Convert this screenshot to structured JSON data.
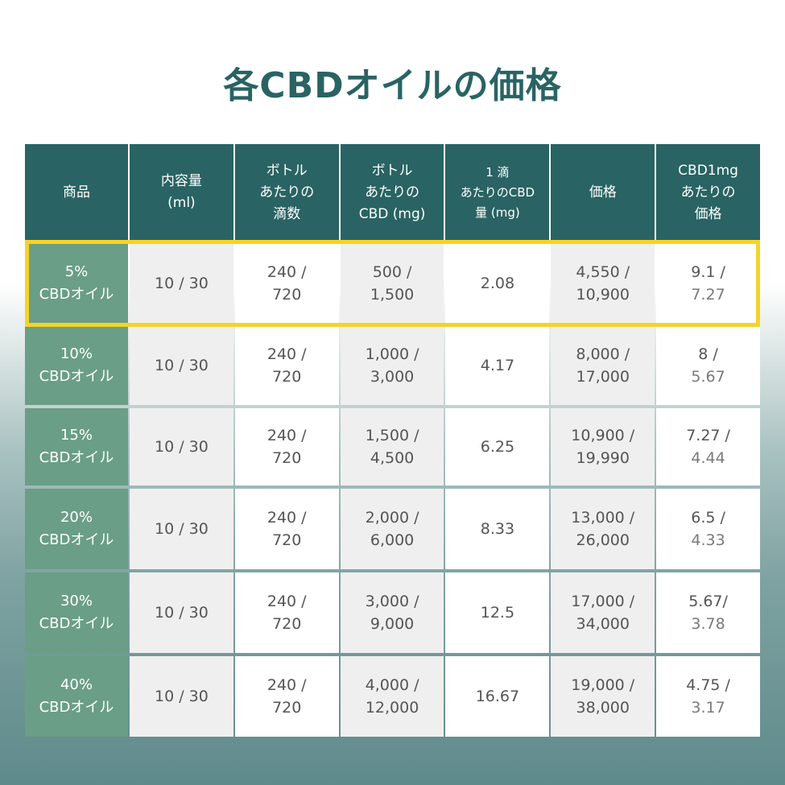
{
  "title": "各CBDオイルの価格",
  "colors": {
    "header": "#2a6363",
    "product_cell": "#6a9e86",
    "highlight": "#f5d327",
    "title": "#2a6363"
  },
  "headers": [
    "商品",
    "内容量\n(ml)",
    "ボトル\nあたりの\n滴数",
    "ボトル\nあたりの\nCBD (mg)",
    "1 滴\nあたりのCBD\n量 (mg)",
    "価格",
    "CBD1mg\nあたりの\n価格"
  ],
  "rows": [
    {
      "product": "5%\nCBDオイル",
      "volume": "10 / 30",
      "drops": "240 /\n720",
      "cbd": "500 /\n1,500",
      "per_drop": "2.08",
      "price": "4,550 /\n10,900",
      "per_mg_1": "9.1 /",
      "per_mg_2": "7.27",
      "highlighted": true
    },
    {
      "product": "10%\nCBDオイル",
      "volume": "10 / 30",
      "drops": "240 /\n720",
      "cbd": "1,000 /\n3,000",
      "per_drop": "4.17",
      "price": "8,000 /\n17,000",
      "per_mg_1": "8 /",
      "per_mg_2": "5.67"
    },
    {
      "product": "15%\nCBDオイル",
      "volume": "10 / 30",
      "drops": "240 /\n720",
      "cbd": "1,500 /\n4,500",
      "per_drop": "6.25",
      "price": "10,900 /\n19,990",
      "per_mg_1": "7.27 /",
      "per_mg_2": "4.44"
    },
    {
      "product": "20%\nCBDオイル",
      "volume": "10 / 30",
      "drops": "240 /\n720",
      "cbd": "2,000 /\n6,000",
      "per_drop": "8.33",
      "price": "13,000 /\n26,000",
      "per_mg_1": "6.5 /",
      "per_mg_2": "4.33"
    },
    {
      "product": "30%\nCBDオイル",
      "volume": "10 / 30",
      "drops": "240 /\n720",
      "cbd": "3,000 /\n9,000",
      "per_drop": "12.5",
      "price": "17,000 /\n34,000",
      "per_mg_1": "5.67/",
      "per_mg_2": "3.78"
    },
    {
      "product": "40%\nCBDオイル",
      "volume": "10 / 30",
      "drops": "240 /\n720",
      "cbd": "4,000 /\n12,000",
      "per_drop": "16.67",
      "price": "19,000 /\n38,000",
      "per_mg_1": "4.75 /",
      "per_mg_2": "3.17"
    }
  ]
}
